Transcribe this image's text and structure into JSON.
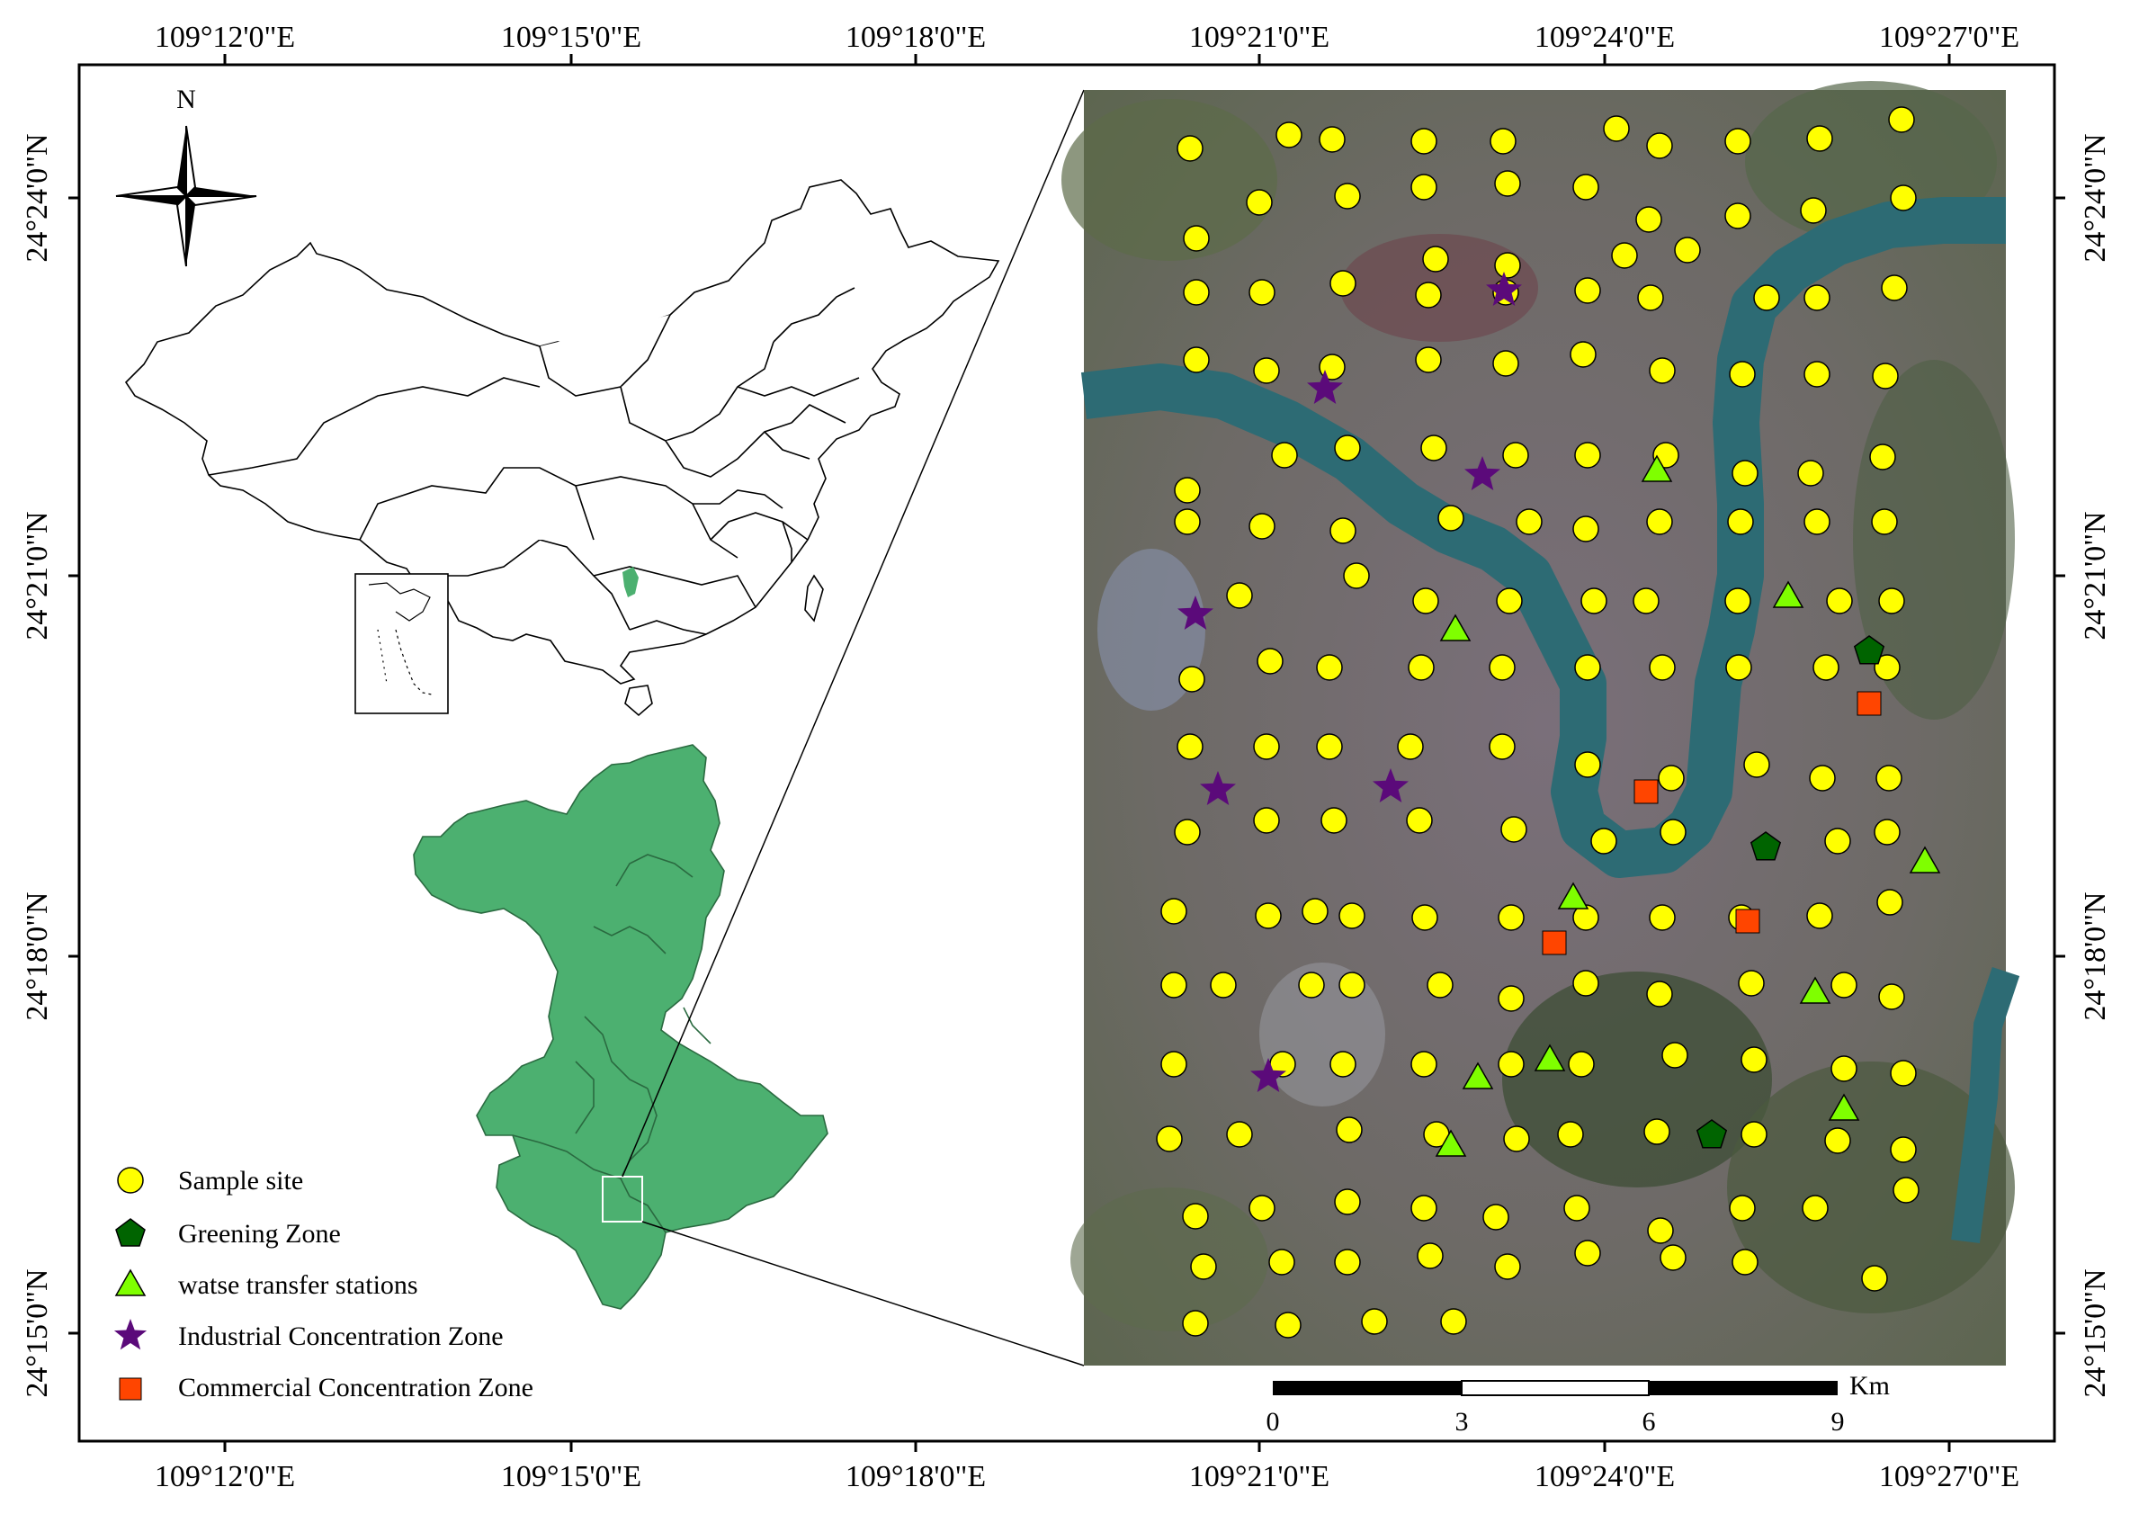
{
  "map": {
    "coordinate_labels": {
      "top_longitudes": [
        "109°12'0\"E",
        "109°15'0\"E",
        "109°18'0\"E",
        "109°21'0\"E",
        "109°24'0\"E",
        "109°27'0\"E"
      ],
      "bottom_longitudes": [
        "109°12'0\"E",
        "109°15'0\"E",
        "109°18'0\"E",
        "109°21'0\"E",
        "109°24'0\"E",
        "109°27'0\"E"
      ],
      "left_latitudes": [
        "24°24'0\"N",
        "24°21'0\"N",
        "24°18'0\"N",
        "24°15'0\"N"
      ],
      "right_latitudes": [
        "24°24'0\"N",
        "24°21'0\"N",
        "24°18'0\"N",
        "24°15'0\"N"
      ]
    },
    "north_arrow": {
      "label": "N"
    },
    "scale_bar": {
      "unit": "Km",
      "ticks": [
        "0",
        "3",
        "6",
        "9"
      ]
    },
    "legend": [
      {
        "key": "sample",
        "label": "Sample site",
        "color": "#ffff00"
      },
      {
        "key": "greening",
        "label": "Greening Zone",
        "color": "#006400"
      },
      {
        "key": "waste",
        "label": "watse transfer stations",
        "color": "#7fff00"
      },
      {
        "key": "industrial",
        "label": "Industrial Concentration Zone",
        "color": "#5b0a7a"
      },
      {
        "key": "commercial",
        "label": "Commercial Concentration Zone",
        "color": "#ff4500"
      }
    ],
    "colors": {
      "study_region": "#4cb070",
      "river": "#2d6b74",
      "highlight_province": "#4cb070"
    }
  }
}
